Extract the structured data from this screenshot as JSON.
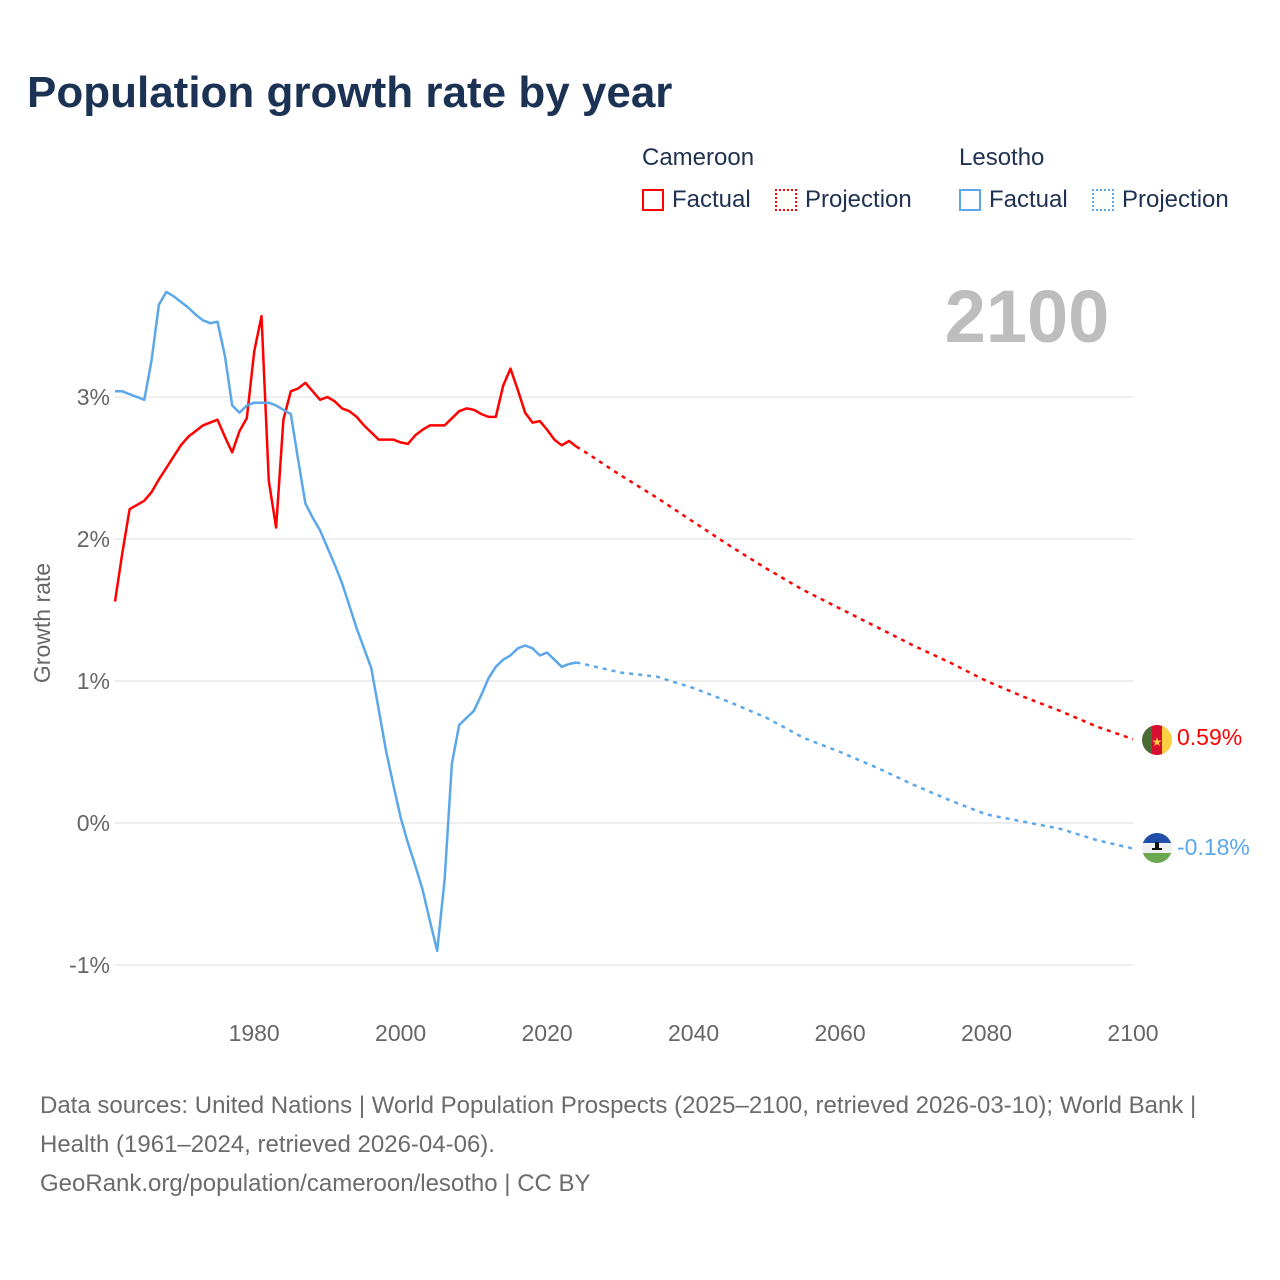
{
  "title": "Population growth rate by year",
  "legend": {
    "groups": [
      {
        "country": "Cameroon",
        "factual": "Factual",
        "projection": "Projection",
        "color": "#ff0000"
      },
      {
        "country": "Lesotho",
        "factual": "Factual",
        "projection": "Projection",
        "color": "#5ba7ea"
      }
    ]
  },
  "chart_data": {
    "type": "line",
    "title": "Population growth rate by year",
    "xlabel": "",
    "ylabel": "Growth rate",
    "xlim": [
      1961,
      2100
    ],
    "ylim": [
      -1.3,
      3.9
    ],
    "x_ticks": [
      1980,
      2000,
      2020,
      2040,
      2060,
      2080,
      2100
    ],
    "x_tick_labels": [
      "1980",
      "2000",
      "2020",
      "2040",
      "2060",
      "2080",
      "2100"
    ],
    "y_ticks": [
      -1,
      0,
      1,
      2,
      3
    ],
    "y_tick_labels": [
      "-1%",
      "0%",
      "1%",
      "2%",
      "3%"
    ],
    "grid": true,
    "year_indicator": "2100",
    "series": [
      {
        "name": "Cameroon Factual",
        "color": "#ff0000",
        "style": "solid",
        "x_start": 1961,
        "values": [
          1.56,
          1.9,
          2.21,
          2.24,
          2.27,
          2.33,
          2.42,
          2.5,
          2.58,
          2.66,
          2.72,
          2.76,
          2.8,
          2.82,
          2.84,
          2.72,
          2.61,
          2.76,
          2.85,
          3.32,
          3.57,
          2.41,
          2.08,
          2.84,
          3.04,
          3.06,
          3.1,
          3.04,
          2.98,
          3.0,
          2.97,
          2.92,
          2.9,
          2.86,
          2.8,
          2.75,
          2.7,
          2.7,
          2.7,
          2.68,
          2.67,
          2.73,
          2.77,
          2.8,
          2.8,
          2.8,
          2.85,
          2.9,
          2.92,
          2.91,
          2.88,
          2.86,
          2.86,
          3.08,
          3.2,
          3.05,
          2.89,
          2.82,
          2.83,
          2.77,
          2.7,
          2.66,
          2.69,
          2.65
        ]
      },
      {
        "name": "Cameroon Projection",
        "color": "#ff0000",
        "style": "dotted",
        "x": [
          2024,
          2025,
          2030,
          2035,
          2040,
          2045,
          2050,
          2055,
          2060,
          2065,
          2070,
          2075,
          2080,
          2085,
          2090,
          2095,
          2100
        ],
        "values": [
          2.65,
          2.62,
          2.45,
          2.29,
          2.12,
          1.95,
          1.79,
          1.64,
          1.51,
          1.38,
          1.25,
          1.13,
          1.0,
          0.89,
          0.79,
          0.68,
          0.59
        ]
      },
      {
        "name": "Lesotho Factual",
        "color": "#5ba7ea",
        "style": "solid",
        "x_start": 1961,
        "values": [
          3.04,
          3.04,
          3.02,
          3.0,
          2.98,
          3.26,
          3.65,
          3.74,
          3.71,
          3.67,
          3.63,
          3.58,
          3.54,
          3.52,
          3.53,
          3.29,
          2.94,
          2.89,
          2.94,
          2.96,
          2.96,
          2.96,
          2.94,
          2.91,
          2.88,
          2.56,
          2.25,
          2.15,
          2.06,
          1.94,
          1.82,
          1.69,
          1.53,
          1.37,
          1.23,
          1.09,
          0.8,
          0.51,
          0.27,
          0.04,
          -0.14,
          -0.3,
          -0.47,
          -0.69,
          -0.9,
          -0.4,
          0.42,
          0.69,
          0.74,
          0.79,
          0.9,
          1.02,
          1.1,
          1.15,
          1.18,
          1.23,
          1.25,
          1.23,
          1.18,
          1.2,
          1.15,
          1.1,
          1.12,
          1.13
        ]
      },
      {
        "name": "Lesotho Projection",
        "color": "#5ba7ea",
        "style": "dotted",
        "x": [
          2024,
          2025,
          2030,
          2035,
          2040,
          2045,
          2050,
          2055,
          2060,
          2065,
          2070,
          2075,
          2080,
          2085,
          2090,
          2095,
          2100
        ],
        "values": [
          1.13,
          1.12,
          1.06,
          1.03,
          0.95,
          0.85,
          0.74,
          0.6,
          0.5,
          0.39,
          0.27,
          0.16,
          0.06,
          0.01,
          -0.04,
          -0.12,
          -0.18
        ]
      }
    ],
    "end_labels": [
      {
        "country": "Cameroon",
        "label": "0.59%",
        "value": 0.59,
        "color": "#ff0000"
      },
      {
        "country": "Lesotho",
        "label": "-0.18%",
        "value": -0.18,
        "color": "#5ba7ea"
      }
    ]
  },
  "footer": {
    "sources": "Data sources: United Nations | World Population Prospects (2025–2100, retrieved 2026-03-10); World Bank | Health (1961–2024, retrieved 2026-04-06).",
    "credit": "GeoRank.org/population/cameroon/lesotho | CC BY"
  }
}
